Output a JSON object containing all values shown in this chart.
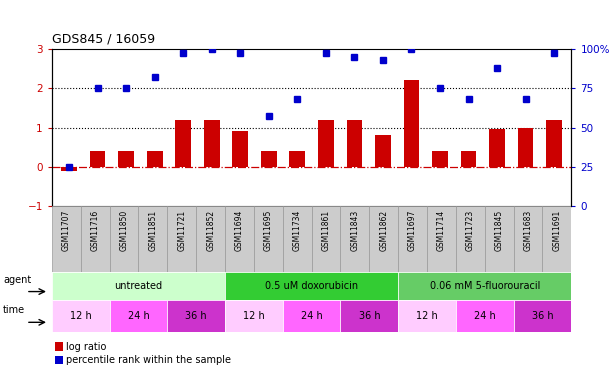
{
  "title": "GDS845 / 16059",
  "samples": [
    "GSM11707",
    "GSM11716",
    "GSM11850",
    "GSM11851",
    "GSM11721",
    "GSM11852",
    "GSM11694",
    "GSM11695",
    "GSM11734",
    "GSM11861",
    "GSM11843",
    "GSM11862",
    "GSM11697",
    "GSM11714",
    "GSM11723",
    "GSM11845",
    "GSM11683",
    "GSM11691"
  ],
  "log_ratio": [
    -0.1,
    0.4,
    0.4,
    0.4,
    1.2,
    1.2,
    0.9,
    0.4,
    0.4,
    1.2,
    1.2,
    0.8,
    2.2,
    0.4,
    0.4,
    0.95,
    1.0,
    1.2
  ],
  "percentile_pct": [
    25,
    75,
    75,
    82,
    97,
    100,
    97,
    57,
    68,
    97,
    95,
    93,
    100,
    75,
    68,
    88,
    68,
    97
  ],
  "bar_color": "#cc0000",
  "dot_color": "#0000cc",
  "zero_line_color": "#cc0000",
  "agent_groups": [
    {
      "label": "untreated",
      "start": 0,
      "end": 6,
      "color": "#ccffcc"
    },
    {
      "label": "0.5 uM doxorubicin",
      "start": 6,
      "end": 12,
      "color": "#33cc33"
    },
    {
      "label": "0.06 mM 5-fluorouracil",
      "start": 12,
      "end": 18,
      "color": "#66cc66"
    }
  ],
  "time_groups": [
    {
      "label": "12 h",
      "start": 0,
      "end": 2,
      "color": "#ffccff"
    },
    {
      "label": "24 h",
      "start": 2,
      "end": 4,
      "color": "#ff66ff"
    },
    {
      "label": "36 h",
      "start": 4,
      "end": 6,
      "color": "#cc33cc"
    },
    {
      "label": "12 h",
      "start": 6,
      "end": 8,
      "color": "#ffccff"
    },
    {
      "label": "24 h",
      "start": 8,
      "end": 10,
      "color": "#ff66ff"
    },
    {
      "label": "36 h",
      "start": 10,
      "end": 12,
      "color": "#cc33cc"
    },
    {
      "label": "12 h",
      "start": 12,
      "end": 14,
      "color": "#ffccff"
    },
    {
      "label": "24 h",
      "start": 14,
      "end": 16,
      "color": "#ff66ff"
    },
    {
      "label": "36 h",
      "start": 16,
      "end": 18,
      "color": "#cc33cc"
    }
  ],
  "ylim_left": [
    -1,
    3
  ],
  "yticks_left": [
    -1,
    0,
    1,
    2,
    3
  ],
  "yticks_right": [
    0,
    25,
    50,
    75,
    100
  ],
  "ytick_labels_right": [
    "0",
    "25",
    "50",
    "75",
    "100%"
  ],
  "sample_bg_color": "#cccccc",
  "legend_red_label": "log ratio",
  "legend_blue_label": "percentile rank within the sample",
  "bg_color": "#ffffff"
}
